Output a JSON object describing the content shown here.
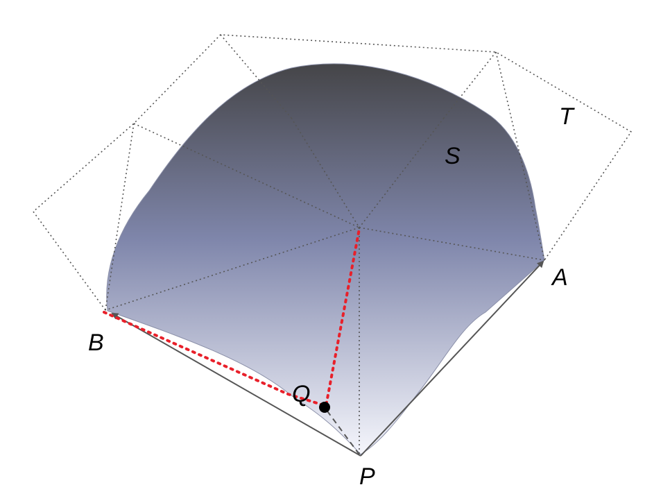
{
  "labels": {
    "P": "P",
    "A": "A",
    "B": "B",
    "Q": "Q",
    "S": "S",
    "T": "T"
  },
  "colors": {
    "surface_top": "#4a4a52",
    "surface_mid": "#7f86ab",
    "surface_bottom": "#f4f5fb",
    "dotted_grid": "#555555",
    "red_path": "#e8202a",
    "arrow": "#555555",
    "point": "#000000"
  }
}
